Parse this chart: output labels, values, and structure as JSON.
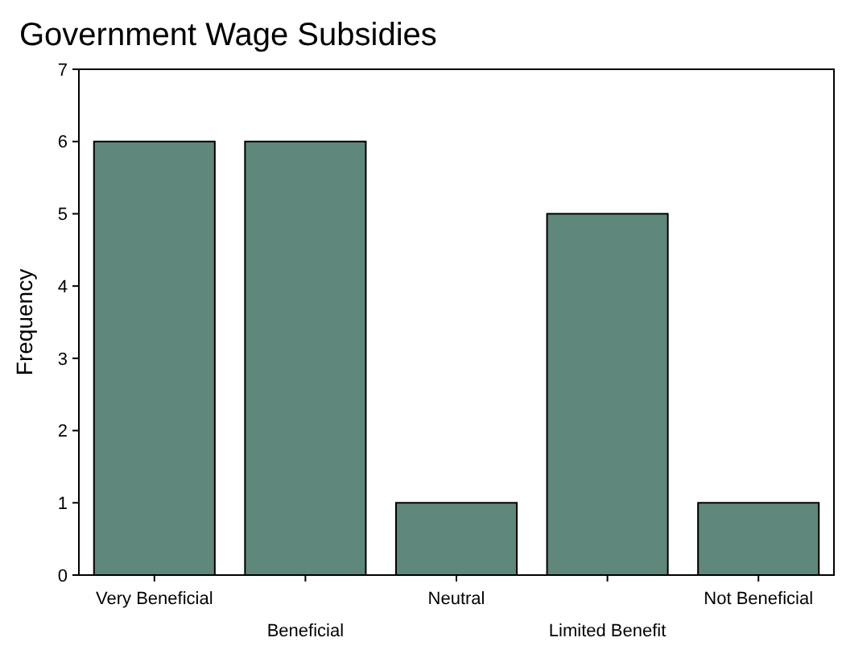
{
  "chart_data": {
    "type": "bar",
    "title": "Government Wage Subsidies",
    "ylabel": "Frequency",
    "categories": [
      "Very Beneficial",
      "Beneficial",
      "Neutral",
      "Limited Benefit",
      "Not Beneficial"
    ],
    "values": [
      6,
      6,
      1,
      5,
      1
    ],
    "color": "#5f877c",
    "ylim": [
      0,
      7
    ],
    "yticks": [
      0,
      1,
      2,
      3,
      4,
      5,
      6,
      7
    ],
    "grid": false
  }
}
